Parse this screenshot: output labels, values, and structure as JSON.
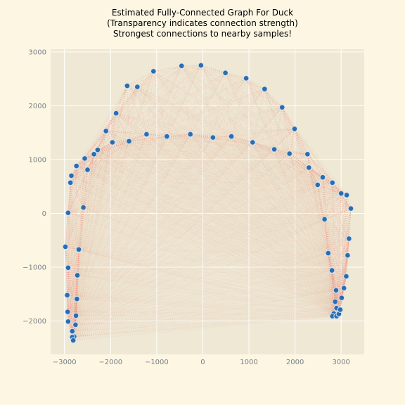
{
  "chart_data": {
    "type": "scatter",
    "title_lines": [
      "Estimated Fully-Connected Graph For Duck",
      "(Transparency indicates connection strength)",
      "Strongest connections to nearby samples!"
    ],
    "xlabel": "",
    "ylabel": "",
    "xlim": [
      -3300,
      3500
    ],
    "ylim": [
      -2620,
      3050
    ],
    "xticks": [
      -3000,
      -2000,
      -1000,
      0,
      1000,
      2000,
      3000
    ],
    "yticks": [
      -2000,
      -1000,
      0,
      1000,
      2000,
      3000
    ],
    "x_tick_labels": [
      "−3000",
      "−2000",
      "−1000",
      "0",
      "1000",
      "2000",
      "3000"
    ],
    "y_tick_labels": [
      "−2000",
      "−1000",
      "0",
      "1000",
      "2000",
      "3000"
    ],
    "grid": true,
    "colors": {
      "figure_bg": "#fdf6e3",
      "axes_bg": "#eee8d5",
      "grid": "#ffffff",
      "point": "#2a6db0",
      "point_edge": "#d5e4f2",
      "edge": "#f08070"
    },
    "points": [
      {
        "x": -40,
        "y": 2750
      },
      {
        "x": -460,
        "y": 2740
      },
      {
        "x": -1070,
        "y": 2640
      },
      {
        "x": -1640,
        "y": 2370
      },
      {
        "x": -1420,
        "y": 2350
      },
      {
        "x": -1880,
        "y": 1860
      },
      {
        "x": -2100,
        "y": 1530
      },
      {
        "x": -1960,
        "y": 1320
      },
      {
        "x": -1600,
        "y": 1340
      },
      {
        "x": -1220,
        "y": 1470
      },
      {
        "x": -780,
        "y": 1430
      },
      {
        "x": -270,
        "y": 1470
      },
      {
        "x": 220,
        "y": 1410
      },
      {
        "x": 620,
        "y": 1430
      },
      {
        "x": 1080,
        "y": 1320
      },
      {
        "x": 1550,
        "y": 1190
      },
      {
        "x": 1880,
        "y": 1110
      },
      {
        "x": 2270,
        "y": 1100
      },
      {
        "x": 2300,
        "y": 850
      },
      {
        "x": 2490,
        "y": 530
      },
      {
        "x": 2600,
        "y": 670
      },
      {
        "x": 2810,
        "y": 570
      },
      {
        "x": 3000,
        "y": 370
      },
      {
        "x": 3120,
        "y": 340
      },
      {
        "x": 3210,
        "y": 90
      },
      {
        "x": 490,
        "y": 2610
      },
      {
        "x": 940,
        "y": 2510
      },
      {
        "x": 1340,
        "y": 2310
      },
      {
        "x": 1720,
        "y": 1970
      },
      {
        "x": 1990,
        "y": 1570
      },
      {
        "x": -2560,
        "y": 1020
      },
      {
        "x": -2500,
        "y": 810
      },
      {
        "x": -2360,
        "y": 1100
      },
      {
        "x": -2280,
        "y": 1180
      },
      {
        "x": -2740,
        "y": 880
      },
      {
        "x": -2850,
        "y": 700
      },
      {
        "x": -2870,
        "y": 570
      },
      {
        "x": -2590,
        "y": 110
      },
      {
        "x": -2920,
        "y": 10
      },
      {
        "x": -2980,
        "y": -620
      },
      {
        "x": -2690,
        "y": -670
      },
      {
        "x": -2920,
        "y": -1010
      },
      {
        "x": -2720,
        "y": -1150
      },
      {
        "x": -2940,
        "y": -1520
      },
      {
        "x": -2730,
        "y": -1590
      },
      {
        "x": -2930,
        "y": -1830
      },
      {
        "x": -2750,
        "y": -1900
      },
      {
        "x": -2920,
        "y": -2010
      },
      {
        "x": -2760,
        "y": -2070
      },
      {
        "x": -2830,
        "y": -2190
      },
      {
        "x": -2790,
        "y": -2290
      },
      {
        "x": -2830,
        "y": -2300
      },
      {
        "x": -2810,
        "y": -2360
      },
      {
        "x": 2640,
        "y": -110
      },
      {
        "x": 2720,
        "y": -740
      },
      {
        "x": 2800,
        "y": -1060
      },
      {
        "x": 2890,
        "y": -1430
      },
      {
        "x": 2870,
        "y": -1640
      },
      {
        "x": 2900,
        "y": -1760
      },
      {
        "x": 2840,
        "y": -1860
      },
      {
        "x": 2810,
        "y": -1910
      },
      {
        "x": 2900,
        "y": -1910
      },
      {
        "x": 2950,
        "y": -1870
      },
      {
        "x": 2980,
        "y": -1790
      },
      {
        "x": 3010,
        "y": -1570
      },
      {
        "x": 3060,
        "y": -1390
      },
      {
        "x": 3110,
        "y": -1170
      },
      {
        "x": 3140,
        "y": -780
      },
      {
        "x": 3170,
        "y": -470
      }
    ]
  }
}
